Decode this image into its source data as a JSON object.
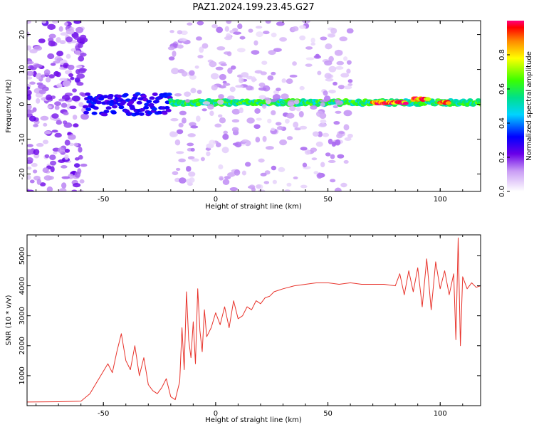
{
  "title": "PAZ1.2024.199.23.45.G27",
  "chart_data": [
    {
      "type": "heatmap",
      "xlabel": "Height of straight line (km)",
      "ylabel": "Frequency (Hz)",
      "xlim": [
        -84,
        118
      ],
      "ylim": [
        -25,
        24
      ],
      "xticks": [
        -50,
        0,
        50,
        100
      ],
      "yticks": [
        -20,
        -10,
        0,
        10,
        20
      ],
      "grid": false,
      "colorbar": {
        "label": "Normalized spectral amplitude",
        "range": [
          0,
          1
        ],
        "ticks": [
          0.0,
          0.2,
          0.4,
          0.6,
          0.8
        ]
      },
      "features": [
        {
          "x_range": [
            -84,
            -58
          ],
          "y_range": [
            -25,
            24
          ],
          "amplitude": 0.15,
          "description_type": "scattered noise"
        },
        {
          "x_range": [
            -58,
            -20
          ],
          "y_center": 0,
          "y_spread": 6,
          "amplitude": 0.3
        },
        {
          "x_range": [
            -20,
            120
          ],
          "y_center": 0.5,
          "y_spread": 1.5,
          "amplitude": 0.6
        },
        {
          "x_range": [
            70,
            85
          ],
          "y_center": 0.5,
          "amplitude": 0.95
        },
        {
          "x_range": [
            88,
            95
          ],
          "y_center": 1.5,
          "amplitude": 0.9
        },
        {
          "x_range": [
            100,
            104
          ],
          "y_center": 0.5,
          "amplitude": 0.95
        },
        {
          "x_range": [
            -20,
            60
          ],
          "y_range": [
            -25,
            24
          ],
          "amplitude": 0.1,
          "description_type": "diffuse noise"
        }
      ]
    },
    {
      "type": "line",
      "xlabel": "Height of straight line (km)",
      "ylabel": "SNR (10 * v/v)",
      "xlim": [
        -84,
        118
      ],
      "ylim": [
        0,
        5700
      ],
      "xticks": [
        -50,
        0,
        50,
        100
      ],
      "yticks": [
        1000,
        2000,
        3000,
        4000,
        5000
      ],
      "grid": false,
      "series": [
        {
          "color": "#e8322a",
          "x": [
            -84,
            -70,
            -60,
            -56,
            -52,
            -48,
            -46,
            -44,
            -42,
            -40,
            -38,
            -36,
            -34,
            -32,
            -30,
            -28,
            -26,
            -24,
            -22,
            -20,
            -18,
            -16,
            -15,
            -14,
            -13,
            -12,
            -11,
            -10,
            -9,
            -8,
            -7,
            -6,
            -5,
            -4,
            -2,
            0,
            2,
            4,
            6,
            8,
            10,
            12,
            14,
            16,
            18,
            20,
            22,
            24,
            26,
            28,
            30,
            35,
            40,
            45,
            50,
            55,
            60,
            65,
            70,
            75,
            80,
            82,
            84,
            86,
            88,
            90,
            92,
            94,
            96,
            98,
            100,
            102,
            104,
            106,
            107,
            108,
            109,
            110,
            112,
            114,
            116,
            118
          ],
          "y": [
            120,
            130,
            150,
            400,
            900,
            1400,
            1100,
            1800,
            2400,
            1500,
            1200,
            2000,
            1000,
            1600,
            700,
            500,
            400,
            600,
            900,
            300,
            200,
            800,
            2600,
            1200,
            3800,
            2200,
            1600,
            2800,
            1400,
            3900,
            2500,
            1800,
            3200,
            2300,
            2600,
            3100,
            2700,
            3300,
            2600,
            3500,
            2900,
            3000,
            3300,
            3200,
            3500,
            3400,
            3600,
            3650,
            3800,
            3850,
            3900,
            4000,
            4050,
            4100,
            4100,
            4050,
            4100,
            4050,
            4050,
            4050,
            4000,
            4400,
            3700,
            4500,
            3800,
            4600,
            3300,
            4900,
            3200,
            4800,
            3900,
            4500,
            3700,
            4400,
            2200,
            5600,
            2000,
            4300,
            3900,
            4100,
            3950,
            4000
          ]
        }
      ]
    }
  ]
}
